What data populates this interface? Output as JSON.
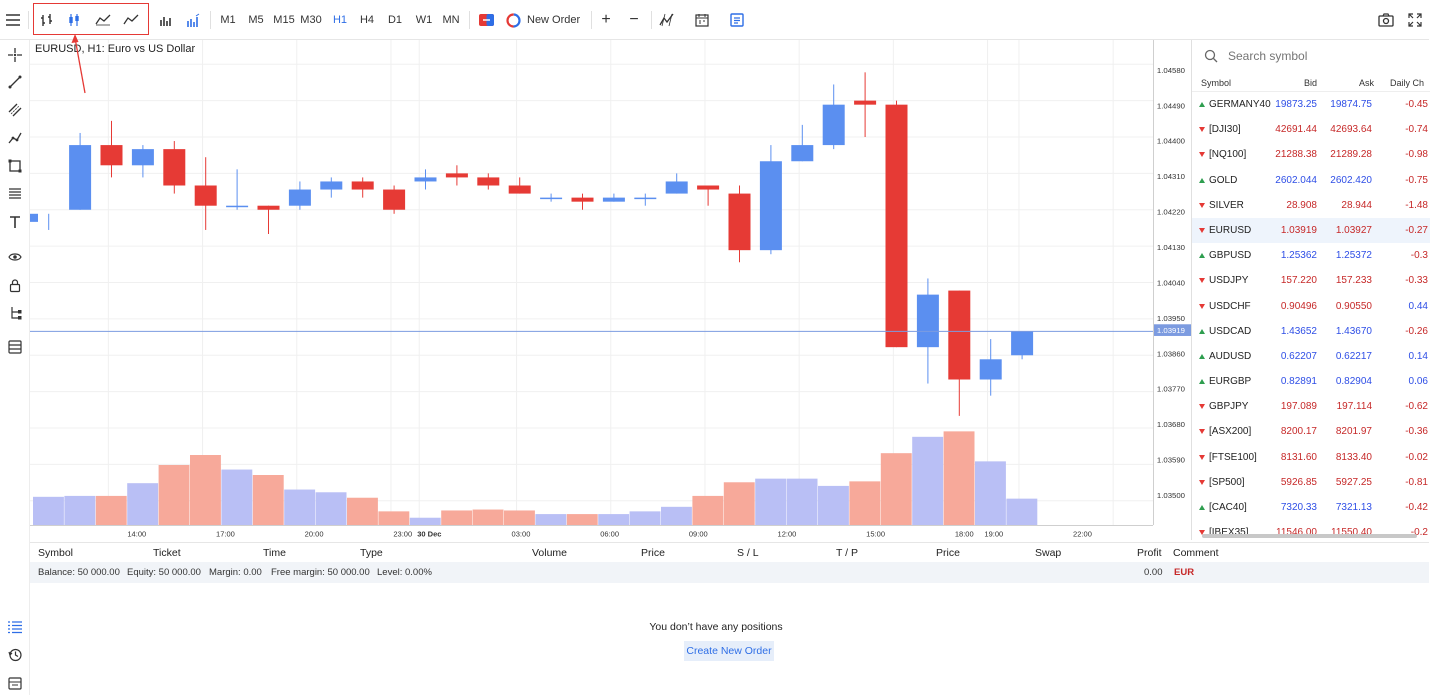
{
  "toolbar": {
    "timeframes": [
      "M1",
      "M5",
      "M15",
      "M30",
      "H1",
      "H4",
      "D1",
      "W1",
      "MN"
    ],
    "active_timeframe": "H1",
    "new_order_label": "New Order",
    "zoom_in": "+",
    "zoom_out": "−"
  },
  "chart": {
    "title": "EURUSD, H1: Euro vs US Dollar",
    "current_price_label": "1.03919",
    "colors": {
      "bull": "#5b8ff0",
      "bear": "#e63a35",
      "vol_bull": "#b9bff5",
      "vol_bear": "#f7a99a",
      "price_line": "#7c9be0"
    }
  },
  "chart_data": {
    "type": "candlestick",
    "price_ticks": [
      "1.04580",
      "1.04490",
      "1.04400",
      "1.04310",
      "1.04220",
      "1.04130",
      "1.04040",
      "1.03950",
      "1.03860",
      "1.03770",
      "1.03680",
      "1.03590",
      "1.03500"
    ],
    "time_labels": [
      {
        "label": "14:00",
        "index": 1.9
      },
      {
        "label": "17:00",
        "index": 4.9
      },
      {
        "label": "20:00",
        "index": 7.9
      },
      {
        "label": "23:00",
        "index": 10.9
      },
      {
        "label": "30 Dec",
        "index": 11.8
      },
      {
        "label": "03:00",
        "index": 14.9
      },
      {
        "label": "06:00",
        "index": 17.9
      },
      {
        "label": "09:00",
        "index": 20.9
      },
      {
        "label": "12:00",
        "index": 23.9
      },
      {
        "label": "15:00",
        "index": 26.9
      },
      {
        "label": "18:00",
        "index": 29.9
      },
      {
        "label": "19:00",
        "index": 30.9
      },
      {
        "label": "22:00",
        "index": 33.9
      }
    ],
    "candles": [
      {
        "o": 1.0419,
        "h": 1.0421,
        "l": 1.0417,
        "c": 1.0421,
        "v": 31
      },
      {
        "o": 1.0422,
        "h": 1.0441,
        "l": 1.0422,
        "c": 1.0438,
        "v": 32
      },
      {
        "o": 1.0438,
        "h": 1.0444,
        "l": 1.043,
        "c": 1.0433,
        "v": 32
      },
      {
        "o": 1.0433,
        "h": 1.0438,
        "l": 1.043,
        "c": 1.0437,
        "v": 46
      },
      {
        "o": 1.0437,
        "h": 1.0439,
        "l": 1.0426,
        "c": 1.0428,
        "v": 66
      },
      {
        "o": 1.0428,
        "h": 1.0435,
        "l": 1.0417,
        "c": 1.0423,
        "v": 77
      },
      {
        "o": 1.0423,
        "h": 1.0432,
        "l": 1.0422,
        "c": 1.0423,
        "v": 61
      },
      {
        "o": 1.0423,
        "h": 1.0423,
        "l": 1.0416,
        "c": 1.0422,
        "v": 55
      },
      {
        "o": 1.0423,
        "h": 1.0429,
        "l": 1.0422,
        "c": 1.0427,
        "v": 39
      },
      {
        "o": 1.0427,
        "h": 1.043,
        "l": 1.0425,
        "c": 1.0429,
        "v": 36
      },
      {
        "o": 1.0429,
        "h": 1.043,
        "l": 1.0425,
        "c": 1.0427,
        "v": 30
      },
      {
        "o": 1.0427,
        "h": 1.0428,
        "l": 1.0421,
        "c": 1.0422,
        "v": 15
      },
      {
        "o": 1.0429,
        "h": 1.0432,
        "l": 1.0427,
        "c": 1.043,
        "v": 8
      },
      {
        "o": 1.0431,
        "h": 1.0433,
        "l": 1.0428,
        "c": 1.043,
        "v": 16
      },
      {
        "o": 1.043,
        "h": 1.0431,
        "l": 1.0427,
        "c": 1.0428,
        "v": 17
      },
      {
        "o": 1.0428,
        "h": 1.043,
        "l": 1.0426,
        "c": 1.0426,
        "v": 16
      },
      {
        "o": 1.0425,
        "h": 1.0426,
        "l": 1.0424,
        "c": 1.0425,
        "v": 12
      },
      {
        "o": 1.0425,
        "h": 1.0426,
        "l": 1.0422,
        "c": 1.0424,
        "v": 12
      },
      {
        "o": 1.0424,
        "h": 1.0426,
        "l": 1.0424,
        "c": 1.0425,
        "v": 12
      },
      {
        "o": 1.0425,
        "h": 1.0426,
        "l": 1.0423,
        "c": 1.0425,
        "v": 15
      },
      {
        "o": 1.0426,
        "h": 1.0431,
        "l": 1.0426,
        "c": 1.0429,
        "v": 20
      },
      {
        "o": 1.0428,
        "h": 1.0428,
        "l": 1.0423,
        "c": 1.0427,
        "v": 32
      },
      {
        "o": 1.0426,
        "h": 1.0428,
        "l": 1.0409,
        "c": 1.0412,
        "v": 47
      },
      {
        "o": 1.0412,
        "h": 1.0438,
        "l": 1.0411,
        "c": 1.0434,
        "v": 51
      },
      {
        "o": 1.0434,
        "h": 1.0443,
        "l": 1.0434,
        "c": 1.0438,
        "v": 51
      },
      {
        "o": 1.0438,
        "h": 1.0453,
        "l": 1.0437,
        "c": 1.0448,
        "v": 43
      },
      {
        "o": 1.0449,
        "h": 1.0456,
        "l": 1.044,
        "c": 1.0448,
        "v": 48
      },
      {
        "o": 1.0448,
        "h": 1.0449,
        "l": 1.0388,
        "c": 1.0388,
        "v": 79
      },
      {
        "o": 1.0388,
        "h": 1.0405,
        "l": 1.0379,
        "c": 1.0401,
        "v": 97
      },
      {
        "o": 1.0402,
        "h": 1.0402,
        "l": 1.0371,
        "c": 1.038,
        "v": 103
      },
      {
        "o": 1.038,
        "h": 1.039,
        "l": 1.0376,
        "c": 1.0385,
        "v": 70
      },
      {
        "o": 1.0386,
        "h": 1.0392,
        "l": 1.0385,
        "c": 1.0392,
        "v": 29
      }
    ],
    "ylim": [
      1.0344,
      1.0464
    ],
    "vmax": 110
  },
  "watchlist": {
    "search_placeholder": "Search symbol",
    "columns": [
      "Symbol",
      "Bid",
      "Ask",
      "Daily Ch"
    ],
    "rows": [
      {
        "symbol": "GERMANY40",
        "dir": "up",
        "bid": "19873.25",
        "ask": "19874.75",
        "chg": "-0.45",
        "color": "#2e4ee6"
      },
      {
        "symbol": "[DJI30]",
        "dir": "down",
        "bid": "42691.44",
        "ask": "42693.64",
        "chg": "-0.74",
        "color": "#c62828"
      },
      {
        "symbol": "[NQ100]",
        "dir": "down",
        "bid": "21288.38",
        "ask": "21289.28",
        "chg": "-0.98",
        "color": "#c62828"
      },
      {
        "symbol": "GOLD",
        "dir": "up",
        "bid": "2602.044",
        "ask": "2602.420",
        "chg": "-0.75",
        "color": "#2e4ee6"
      },
      {
        "symbol": "SILVER",
        "dir": "down",
        "bid": "28.908",
        "ask": "28.944",
        "chg": "-1.48",
        "color": "#c62828"
      },
      {
        "symbol": "EURUSD",
        "dir": "down",
        "bid": "1.03919",
        "ask": "1.03927",
        "chg": "-0.27",
        "color": "#c62828",
        "selected": true
      },
      {
        "symbol": "GBPUSD",
        "dir": "up",
        "bid": "1.25362",
        "ask": "1.25372",
        "chg": "-0.3",
        "color": "#2e4ee6"
      },
      {
        "symbol": "USDJPY",
        "dir": "down",
        "bid": "157.220",
        "ask": "157.233",
        "chg": "-0.33",
        "color": "#c62828"
      },
      {
        "symbol": "USDCHF",
        "dir": "down",
        "bid": "0.90496",
        "ask": "0.90550",
        "chg": "0.44",
        "color": "#c62828"
      },
      {
        "symbol": "USDCAD",
        "dir": "up",
        "bid": "1.43652",
        "ask": "1.43670",
        "chg": "-0.26",
        "color": "#2e4ee6"
      },
      {
        "symbol": "AUDUSD",
        "dir": "up",
        "bid": "0.62207",
        "ask": "0.62217",
        "chg": "0.14",
        "color": "#2e4ee6"
      },
      {
        "symbol": "EURGBP",
        "dir": "up",
        "bid": "0.82891",
        "ask": "0.82904",
        "chg": "0.06",
        "color": "#2e4ee6"
      },
      {
        "symbol": "GBPJPY",
        "dir": "down",
        "bid": "197.089",
        "ask": "197.114",
        "chg": "-0.62",
        "color": "#c62828"
      },
      {
        "symbol": "[ASX200]",
        "dir": "down",
        "bid": "8200.17",
        "ask": "8201.97",
        "chg": "-0.36",
        "color": "#c62828"
      },
      {
        "symbol": "[FTSE100]",
        "dir": "down",
        "bid": "8131.60",
        "ask": "8133.40",
        "chg": "-0.02",
        "color": "#c62828"
      },
      {
        "symbol": "[SP500]",
        "dir": "down",
        "bid": "5926.85",
        "ask": "5927.25",
        "chg": "-0.81",
        "color": "#c62828"
      },
      {
        "symbol": "[CAC40]",
        "dir": "up",
        "bid": "7320.33",
        "ask": "7321.13",
        "chg": "-0.42",
        "color": "#2e4ee6"
      },
      {
        "symbol": "[IBEX35]",
        "dir": "down",
        "bid": "11546.00",
        "ask": "11550.40",
        "chg": "-0.2",
        "color": "#c62828"
      }
    ]
  },
  "positions": {
    "columns": [
      "Symbol",
      "Ticket",
      "Time",
      "Type",
      "Volume",
      "Price",
      "S / L",
      "T / P",
      "Price",
      "Swap",
      "Profit",
      "Comment"
    ],
    "balance": "Balance: 50 000.00",
    "equity": "Equity: 50 000.00",
    "margin": "Margin: 0.00",
    "free_margin": "Free margin: 50 000.00",
    "level": "Level: 0.00%",
    "profit_total": "0.00",
    "currency": "EUR",
    "empty_message": "You don’t have any positions",
    "create_button": "Create New Order"
  }
}
